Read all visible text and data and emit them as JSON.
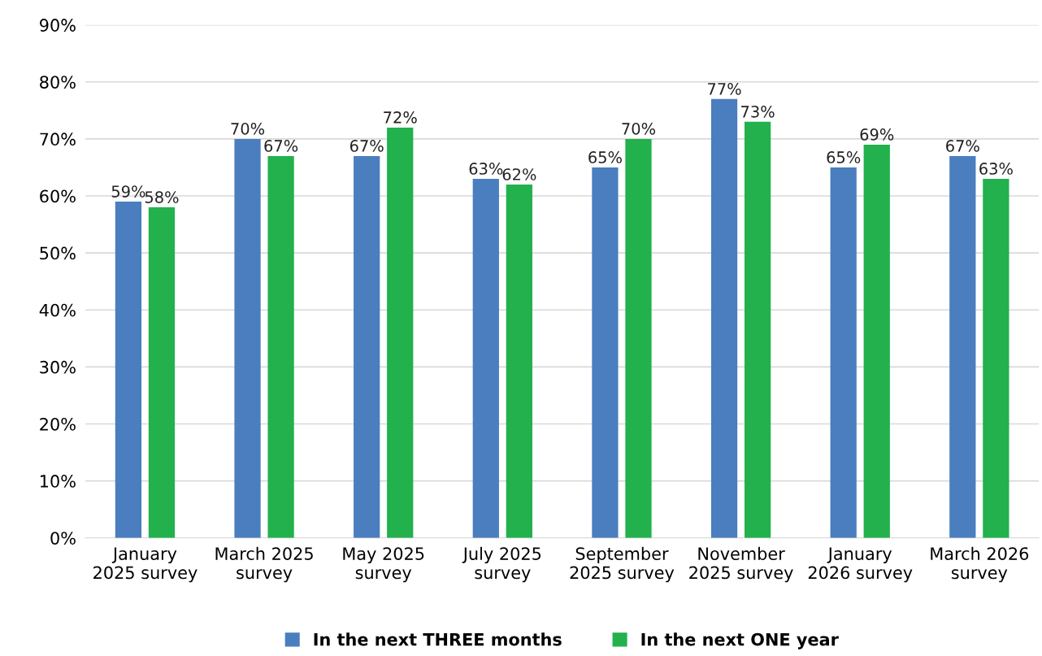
{
  "chart_data": {
    "type": "bar",
    "categories": [
      "January\n2025 survey",
      "March 2025\nsurvey",
      "May 2025\nsurvey",
      "July 2025\nsurvey",
      "September\n2025 survey",
      "November\n2025 survey",
      "January\n2026 survey",
      "March 2026\nsurvey"
    ],
    "series": [
      {
        "name": "In the next THREE months",
        "color": "#4a7ebf",
        "values": [
          59,
          70,
          67,
          63,
          65,
          77,
          65,
          67
        ],
        "value_labels": [
          "59%",
          "70%",
          "67%",
          "63%",
          "65%",
          "77%",
          "65%",
          "67%"
        ]
      },
      {
        "name": "In the next ONE year",
        "color": "#22b14c",
        "values": [
          58,
          67,
          72,
          62,
          70,
          73,
          69,
          63
        ],
        "value_labels": [
          "58%",
          "67%",
          "72%",
          "62%",
          "70%",
          "73%",
          "69%",
          "63%"
        ]
      }
    ],
    "ylim": [
      0,
      90
    ],
    "yticks": [
      {
        "value": 0,
        "label": "0%"
      },
      {
        "value": 10,
        "label": "10%"
      },
      {
        "value": 20,
        "label": "20%"
      },
      {
        "value": 30,
        "label": "30%"
      },
      {
        "value": 40,
        "label": "40%"
      },
      {
        "value": 50,
        "label": "50%"
      },
      {
        "value": 60,
        "label": "60%"
      },
      {
        "value": 70,
        "label": "70%"
      },
      {
        "value": 80,
        "label": "80%"
      },
      {
        "value": 90,
        "label": "90%"
      }
    ],
    "grid": "y",
    "legend": "bottom"
  }
}
